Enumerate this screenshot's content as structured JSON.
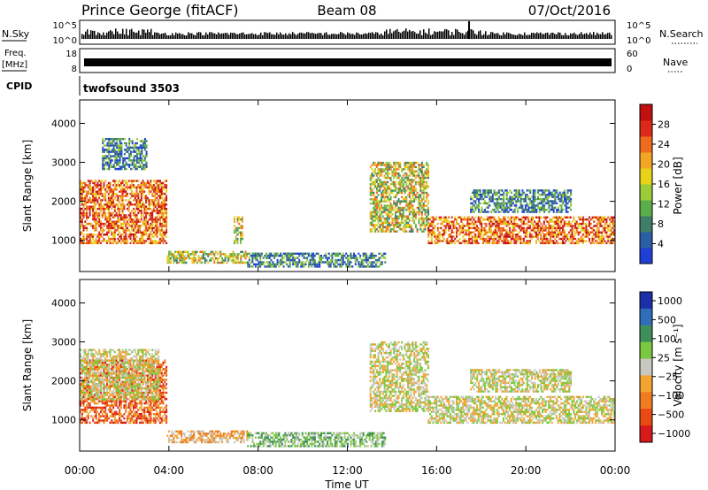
{
  "header": {
    "station": "Prince George (fitACF)",
    "beam": "Beam 08",
    "date": "07/Oct/2016"
  },
  "nsky_panel": {
    "label_left": "N.Sky",
    "label_right": "N.Search",
    "ticks_left": [
      "10^5",
      "10^0"
    ],
    "ticks_right": [
      "10^5",
      "10^0"
    ]
  },
  "freq_panel": {
    "label_left_1": "Freq.",
    "label_left_2": "[MHz]",
    "label_right": "Nave",
    "ticks_left": [
      "18",
      "8"
    ],
    "ticks_right": [
      "60",
      "0"
    ]
  },
  "cpid": {
    "label": "CPID",
    "value": "twofsound 3503"
  },
  "chart_data": [
    {
      "type": "heatmap",
      "name": "power",
      "ylabel": "Slant Range [km]",
      "xlabel": "",
      "yticks": [
        1000,
        2000,
        3000,
        4000
      ],
      "ylim": [
        200,
        4600
      ],
      "xticks": [
        "00:00",
        "04:00",
        "08:00",
        "12:00",
        "16:00",
        "20:00",
        "00:00"
      ],
      "xlim_hours": [
        0,
        24
      ],
      "colorbar": {
        "label": "Power [dB]",
        "ticks": [
          "4",
          "8",
          "12",
          "16",
          "20",
          "24",
          "28"
        ],
        "colors": [
          "#1f3fd6",
          "#2c5ea6",
          "#3f7f6a",
          "#5cae4a",
          "#9ccc3a",
          "#e8d21a",
          "#f2a623",
          "#ee6a1c",
          "#dd2a18",
          "#c01010"
        ]
      },
      "bands": [
        {
          "t0": 0.0,
          "t1": 3.9,
          "r0": 900,
          "r1": 2500,
          "level": "high"
        },
        {
          "t0": 3.9,
          "t1": 7.5,
          "r0": 400,
          "r1": 700,
          "level": "medium"
        },
        {
          "t0": 7.5,
          "t1": 13.7,
          "r0": 300,
          "r1": 650,
          "level": "low"
        },
        {
          "t0": 13.0,
          "t1": 15.6,
          "r0": 1200,
          "r1": 3000,
          "level": "medium"
        },
        {
          "t0": 15.6,
          "t1": 24.0,
          "r0": 900,
          "r1": 1600,
          "level": "high"
        },
        {
          "t0": 17.5,
          "t1": 22.0,
          "r0": 1700,
          "r1": 2300,
          "level": "low"
        },
        {
          "t0": 6.9,
          "t1": 7.3,
          "r0": 900,
          "r1": 1600,
          "level": "medium"
        },
        {
          "t0": 1.0,
          "t1": 3.0,
          "r0": 2800,
          "r1": 3600,
          "level": "low"
        }
      ]
    },
    {
      "type": "heatmap",
      "name": "velocity",
      "ylabel": "Slant Range [km]",
      "xlabel": "Time UT",
      "yticks": [
        1000,
        2000,
        3000,
        4000
      ],
      "ylim": [
        200,
        4600
      ],
      "xticks": [
        "00:00",
        "04:00",
        "08:00",
        "12:00",
        "16:00",
        "20:00",
        "00:00"
      ],
      "xlim_hours": [
        0,
        24
      ],
      "colorbar": {
        "label": "Velocity [m s⁻¹]",
        "ticks": [
          "1000",
          "500",
          "100",
          "25",
          "−25",
          "−100",
          "−500",
          "−1000"
        ],
        "colors": [
          "#1c2fa8",
          "#2f6dbb",
          "#3f8f5a",
          "#7cc840",
          "#c8c8c0",
          "#f1a52e",
          "#ef7d1f",
          "#e84a14",
          "#d7191c"
        ]
      },
      "bands": [
        {
          "t0": 0.0,
          "t1": 3.9,
          "r0": 900,
          "r1": 2500,
          "level": "negative"
        },
        {
          "t0": 3.9,
          "t1": 7.5,
          "r0": 400,
          "r1": 700,
          "level": "slightly-negative"
        },
        {
          "t0": 7.5,
          "t1": 13.7,
          "r0": 300,
          "r1": 650,
          "level": "slightly-positive"
        },
        {
          "t0": 13.0,
          "t1": 15.6,
          "r0": 1200,
          "r1": 3000,
          "level": "near-zero"
        },
        {
          "t0": 15.6,
          "t1": 24.0,
          "r0": 900,
          "r1": 1600,
          "level": "near-zero"
        },
        {
          "t0": 17.5,
          "t1": 22.0,
          "r0": 1700,
          "r1": 2300,
          "level": "near-zero"
        },
        {
          "t0": 0.0,
          "t1": 3.5,
          "r0": 1500,
          "r1": 2800,
          "level": "near-zero"
        }
      ]
    }
  ]
}
